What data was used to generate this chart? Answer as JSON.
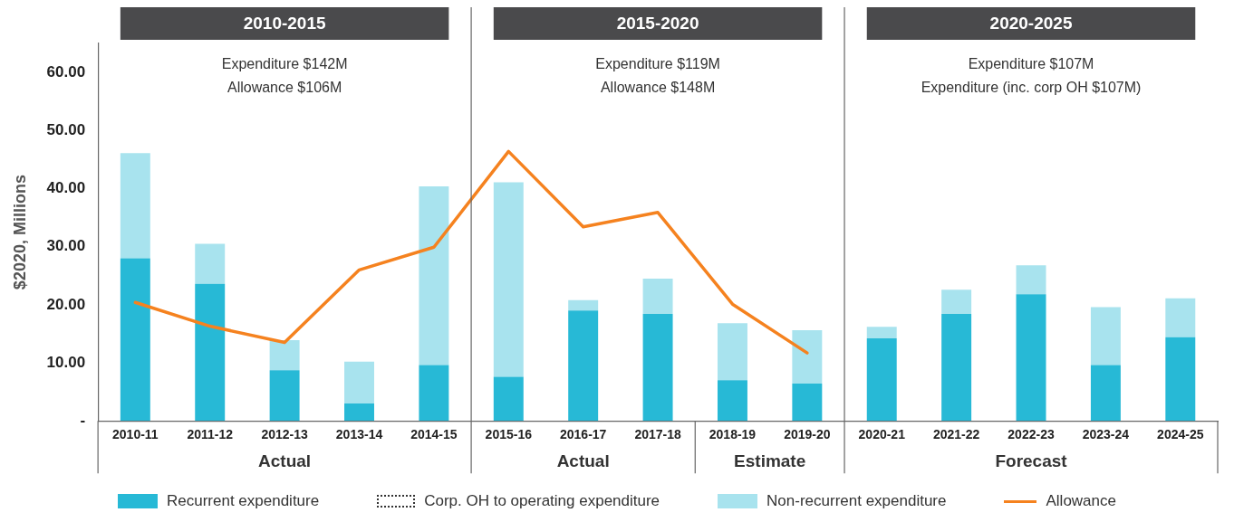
{
  "chart_data": {
    "type": "bar",
    "stacked": true,
    "ylabel": "$2020, Millions",
    "categories": [
      "2010-11",
      "2011-12",
      "2012-13",
      "2013-14",
      "2014-15",
      "2015-16",
      "2016-17",
      "2017-18",
      "2018-19",
      "2019-20",
      "2020-21",
      "2021-22",
      "2022-23",
      "2023-24",
      "2024-25"
    ],
    "series": [
      {
        "name": "Recurrent expenditure",
        "color": "#27b9d6",
        "values": [
          28.0,
          23.6,
          8.7,
          3.0,
          9.6,
          7.6,
          19.0,
          18.4,
          7.0,
          6.4,
          14.2,
          18.4,
          21.8,
          9.6,
          14.4
        ]
      },
      {
        "name": "Corp. OH to operating expenditure",
        "color": "#333333",
        "line_style": "dotted",
        "values": [
          null,
          null,
          null,
          null,
          null,
          null,
          null,
          null,
          null,
          null,
          null,
          null,
          null,
          null,
          null
        ]
      },
      {
        "name": "Non-recurrent expenditure",
        "color": "#a8e3ee",
        "values": [
          18.1,
          6.9,
          5.2,
          7.2,
          30.8,
          33.5,
          1.8,
          6.1,
          9.8,
          9.2,
          2.0,
          4.2,
          5.0,
          10.0,
          6.7
        ]
      },
      {
        "name": "Allowance",
        "type": "line",
        "color": "#f5821f",
        "values": [
          20.4,
          16.3,
          13.5,
          26.0,
          29.9,
          46.4,
          33.4,
          35.9,
          20.1,
          11.7,
          null,
          null,
          null,
          null,
          null
        ]
      }
    ],
    "ylim": [
      0,
      65
    ],
    "yticks": [
      {
        "value": 0,
        "label": "-"
      },
      {
        "value": 10,
        "label": "10.00"
      },
      {
        "value": 20,
        "label": "20.00"
      },
      {
        "value": 30,
        "label": "30.00"
      },
      {
        "value": 40,
        "label": "40.00"
      },
      {
        "value": 50,
        "label": "50.00"
      },
      {
        "value": 60,
        "label": "60.00"
      }
    ],
    "grid": false,
    "legend": "bottom",
    "marker": "none",
    "annotations": [
      "2010-2015",
      "Expenditure $142M",
      "Allowance $106M",
      "2015-2020",
      "Expenditure $119M",
      "Allowance $148M",
      "2020-2025",
      "Expenditure $107M",
      "Expenditure (inc. corp OH $107M)",
      "Actual",
      "Actual",
      "Estimate",
      "Forecast"
    ]
  }
}
